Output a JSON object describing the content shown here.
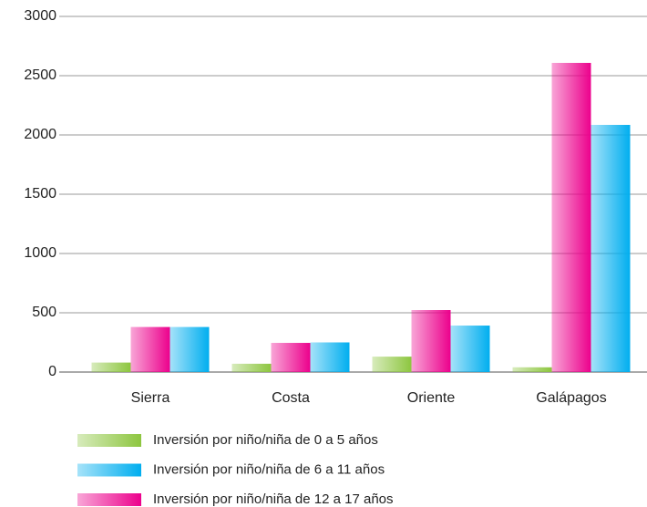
{
  "chart_data": {
    "type": "bar",
    "categories": [
      "Sierra",
      "Costa",
      "Oriente",
      "Galápagos"
    ],
    "series": [
      {
        "name": "Inversión por niño/niña de 0 a 5 años",
        "color": "#8dc63f",
        "values": [
          80,
          70,
          130,
          40
        ]
      },
      {
        "name": "Inversión por niño/niña de 12 a 17 años",
        "color": "#ec008c",
        "values": [
          380,
          246,
          523,
          2608
        ]
      },
      {
        "name": "Inversión por niño/niña de 6 a 11 años",
        "color": "#00aeef",
        "values": [
          380,
          250,
          392,
          2085
        ]
      }
    ],
    "ylim": [
      0,
      3000
    ],
    "yticks": [
      0,
      500,
      1000,
      1500,
      2000,
      2500,
      3000
    ],
    "grid": true
  }
}
